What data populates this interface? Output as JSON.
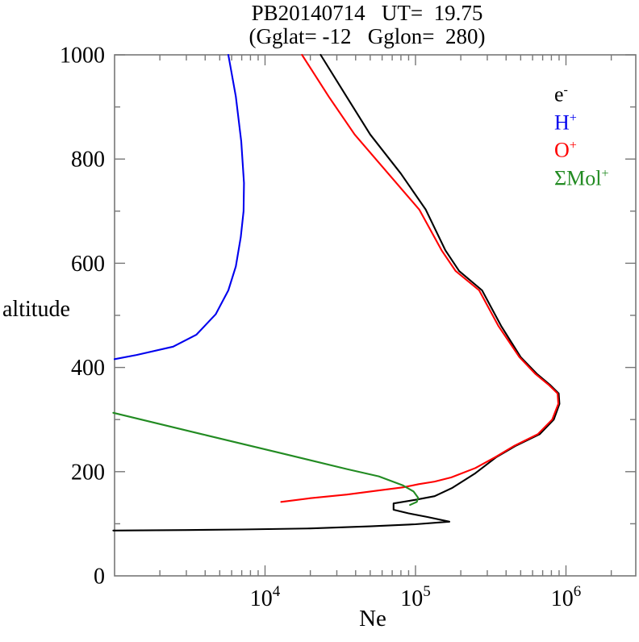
{
  "title": {
    "line1": "PB20140714   UT=  19.75",
    "line2": "(Gglat= -12   Gglon=  280)"
  },
  "axes": {
    "x": {
      "label": "Ne",
      "scale": "log",
      "major_tick_exponents": [
        4,
        5,
        6
      ],
      "tick_label_base": "10"
    },
    "y": {
      "label": "altitude",
      "scale": "linear",
      "tick_labels": [
        0,
        200,
        400,
        600,
        800,
        1000
      ],
      "minor_step": 100
    }
  },
  "legend": {
    "items": [
      {
        "base": "e",
        "sup": "-",
        "color": "#000000"
      },
      {
        "base": "H",
        "sup": "+",
        "color": "#0000ee"
      },
      {
        "base": "O",
        "sup": "+",
        "color": "#ff0000"
      },
      {
        "base": "ΣMol",
        "sup": "+",
        "color": "#228b22"
      }
    ]
  },
  "colors": {
    "frame": "#777777",
    "text": "#000000"
  },
  "chart_data": {
    "type": "line",
    "title": "PB20140714 UT= 19.75 (Gglat= -12 Gglon= 280)",
    "xlabel": "Ne",
    "ylabel": "altitude",
    "x_scale": "log",
    "xlim": [
      1000,
      2910000
    ],
    "ylim": [
      0,
      1000
    ],
    "grid": false,
    "legend_position": "upper right inside",
    "series": [
      {
        "name": "e-",
        "color": "#000000",
        "points": [
          [
            980,
            87
          ],
          [
            3000,
            88
          ],
          [
            7000,
            89
          ],
          [
            20000,
            91
          ],
          [
            50000,
            95
          ],
          [
            100000,
            99
          ],
          [
            168000,
            104
          ],
          [
            120000,
            113
          ],
          [
            90000,
            120
          ],
          [
            71500,
            127
          ],
          [
            71500,
            139
          ],
          [
            100000,
            146
          ],
          [
            134000,
            153
          ],
          [
            176000,
            169
          ],
          [
            250000,
            197
          ],
          [
            345000,
            228
          ],
          [
            460000,
            249
          ],
          [
            670000,
            272
          ],
          [
            830000,
            300
          ],
          [
            905000,
            330
          ],
          [
            895000,
            350
          ],
          [
            780000,
            367
          ],
          [
            640000,
            388
          ],
          [
            500000,
            420
          ],
          [
            370000,
            480
          ],
          [
            277000,
            548
          ],
          [
            195000,
            585
          ],
          [
            158000,
            625
          ],
          [
            117000,
            703
          ],
          [
            80000,
            772
          ],
          [
            50000,
            847
          ],
          [
            34800,
            920
          ],
          [
            23400,
            1000
          ]
        ]
      },
      {
        "name": "H+",
        "color": "#0000ee",
        "points": [
          [
            1000,
            416
          ],
          [
            1400,
            424
          ],
          [
            2450,
            440
          ],
          [
            3500,
            463
          ],
          [
            4700,
            502
          ],
          [
            5700,
            548
          ],
          [
            6400,
            594
          ],
          [
            6900,
            650
          ],
          [
            7200,
            700
          ],
          [
            7250,
            754
          ],
          [
            6950,
            834
          ],
          [
            6400,
            920
          ],
          [
            5700,
            1000
          ]
        ]
      },
      {
        "name": "O+",
        "color": "#ff0000",
        "points": [
          [
            12800,
            142
          ],
          [
            20000,
            149
          ],
          [
            35000,
            156
          ],
          [
            57000,
            164
          ],
          [
            83000,
            170
          ],
          [
            105000,
            176
          ],
          [
            134000,
            181
          ],
          [
            173000,
            189
          ],
          [
            250000,
            207
          ],
          [
            340000,
            228
          ],
          [
            450000,
            249
          ],
          [
            650000,
            272
          ],
          [
            810000,
            300
          ],
          [
            890000,
            330
          ],
          [
            880000,
            350
          ],
          [
            765000,
            367
          ],
          [
            625000,
            388
          ],
          [
            490000,
            420
          ],
          [
            355000,
            480
          ],
          [
            265000,
            548
          ],
          [
            185000,
            585
          ],
          [
            149000,
            625
          ],
          [
            106000,
            703
          ],
          [
            66000,
            772
          ],
          [
            39400,
            847
          ],
          [
            26500,
            920
          ],
          [
            17600,
            1000
          ]
        ]
      },
      {
        "name": "Mol+",
        "color": "#228b22",
        "points": [
          [
            980,
            313
          ],
          [
            3800,
            272
          ],
          [
            13000,
            235
          ],
          [
            35000,
            205
          ],
          [
            57000,
            191
          ],
          [
            82000,
            174
          ],
          [
            97000,
            162
          ],
          [
            104000,
            150
          ],
          [
            102000,
            142
          ],
          [
            92000,
            136
          ]
        ]
      }
    ]
  }
}
